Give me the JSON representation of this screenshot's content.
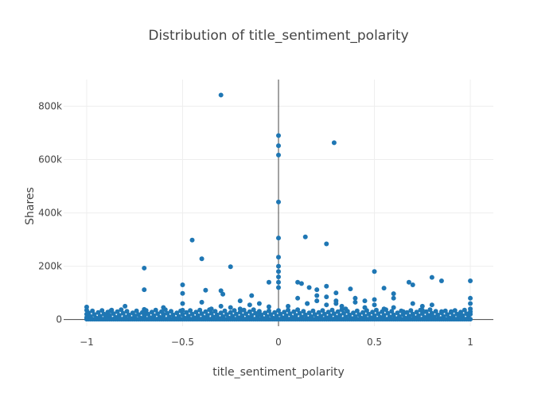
{
  "chart_data": {
    "type": "scatter",
    "title": "Distribution of title_sentiment_polarity",
    "xlabel": "title_sentiment_polarity",
    "ylabel": "Shares",
    "xlim": [
      -1.12,
      1.12
    ],
    "ylim": [
      -25000,
      900000
    ],
    "x_ticks": [
      {
        "value": -1,
        "label": "−1"
      },
      {
        "value": -0.5,
        "label": "−0.5"
      },
      {
        "value": 0,
        "label": "0"
      },
      {
        "value": 0.5,
        "label": "0.5"
      },
      {
        "value": 1,
        "label": "1"
      }
    ],
    "y_ticks": [
      {
        "value": 0,
        "label": "0"
      },
      {
        "value": 200000,
        "label": "200k"
      },
      {
        "value": 400000,
        "label": "400k"
      },
      {
        "value": 600000,
        "label": "600k"
      },
      {
        "value": 800000,
        "label": "800k"
      }
    ],
    "grid": true,
    "zero_line_x": 0,
    "marker_color": "#1f77b4",
    "series": [
      {
        "x": [
          -0.3,
          0.0,
          0.0,
          0.0,
          0.0,
          0.0,
          0.0,
          0.29,
          0.14,
          0.25,
          -0.45,
          -0.4,
          -0.25,
          -0.7,
          -0.7,
          -0.5,
          0.5,
          0.8,
          0.85,
          1.0,
          0.68,
          0.7,
          0.55,
          0.6,
          0.6,
          0.375,
          0.1,
          0.12,
          0.16,
          0.2,
          0.25,
          0.3,
          -0.3,
          -0.29,
          -0.5,
          -0.38,
          -0.14,
          -0.05,
          0.0,
          0.0,
          0.0,
          0.0,
          0.0,
          -1.0,
          -1.0,
          -1.0,
          -1.0,
          -0.9,
          -0.875,
          -0.833,
          -0.8,
          -0.75,
          -0.7,
          -0.7,
          -0.6,
          -0.6,
          -0.5,
          -0.5,
          -0.4,
          -0.35,
          -0.3,
          -0.25,
          -0.2,
          -0.15,
          -0.1,
          -0.05,
          0.05,
          0.1,
          0.15,
          0.2,
          0.25,
          0.3,
          0.35,
          0.4,
          0.45,
          0.5,
          0.5,
          0.55,
          0.6,
          0.65,
          0.7,
          0.75,
          0.8,
          0.85,
          0.9,
          0.95,
          1.0,
          1.0,
          1.0,
          1.0,
          0.7,
          0.8,
          0.75,
          -0.1,
          0.25,
          0.3,
          0.2,
          0.15,
          0.4,
          0.45,
          -0.2,
          0.33
        ],
        "y": [
          842000,
          690000,
          652000,
          617000,
          441000,
          306000,
          234000,
          663000,
          310000,
          284000,
          298000,
          228000,
          198000,
          193000,
          112000,
          130000,
          180000,
          158000,
          145000,
          145000,
          140000,
          130000,
          118000,
          97000,
          80000,
          115000,
          140000,
          135000,
          120000,
          112000,
          125000,
          100000,
          108000,
          95000,
          98000,
          110000,
          90000,
          140000,
          200000,
          180000,
          160000,
          140000,
          120000,
          47000,
          35000,
          20000,
          8000,
          15000,
          32000,
          10000,
          50000,
          14000,
          38000,
          22000,
          45000,
          20000,
          60000,
          35000,
          65000,
          40000,
          50000,
          45000,
          70000,
          55000,
          60000,
          48000,
          50000,
          80000,
          60000,
          70000,
          55000,
          60000,
          40000,
          65000,
          45000,
          75000,
          55000,
          40000,
          45000,
          30000,
          60000,
          50000,
          55000,
          30000,
          30000,
          20000,
          80000,
          60000,
          40000,
          20000,
          18000,
          12000,
          35000,
          25000,
          85000,
          70000,
          90000,
          60000,
          80000,
          70000,
          40000,
          50000
        ]
      }
    ]
  }
}
